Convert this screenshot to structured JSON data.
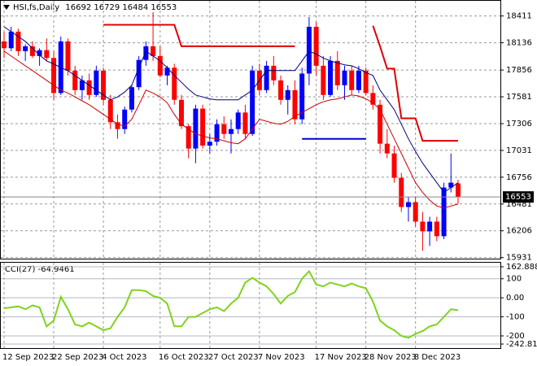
{
  "chart_data": [
    {
      "type": "candlestick",
      "title": "HSI,fs,Daily",
      "grid": true,
      "up_color": "#0000ff",
      "down_color": "#ff0000",
      "categories": [
        "12 Sep 2023",
        null,
        null,
        null,
        null,
        null,
        null,
        "22 Sep 2023",
        null,
        null,
        null,
        null,
        null,
        null,
        "4 Oct 2023",
        null,
        null,
        null,
        null,
        null,
        null,
        null,
        "16 Oct 2023",
        null,
        null,
        null,
        null,
        null,
        null,
        "27 Oct 2023",
        null,
        null,
        null,
        null,
        null,
        null,
        "7 Nov 2023",
        null,
        null,
        null,
        null,
        null,
        null,
        null,
        "17 Nov 2023",
        null,
        null,
        null,
        null,
        null,
        null,
        "28 Nov 2023",
        null,
        null,
        null,
        null,
        null,
        null,
        "8 Dec 2023",
        null,
        null,
        null,
        null,
        null,
        null
      ],
      "open": [
        18150,
        18080,
        18250,
        18050,
        18100,
        18000,
        18060,
        17980,
        17620,
        18150,
        17850,
        17650,
        17750,
        17600,
        17850,
        17550,
        17320,
        17250,
        17450,
        17680,
        17960,
        18100,
        18000,
        17800,
        17880,
        17550,
        17280,
        17050,
        17460,
        17080,
        17120,
        17300,
        17200,
        17250,
        17420,
        17200,
        17850,
        17650,
        17900,
        17750,
        17550,
        17650,
        17350,
        17820,
        18300,
        17900,
        17600,
        17950,
        17700,
        17850,
        17650,
        17850,
        17620,
        17500,
        17100,
        17000,
        16750,
        16450,
        16500,
        16300,
        16200,
        16300,
        16150,
        16650,
        16692
      ],
      "high": [
        18250,
        18300,
        18280,
        18120,
        18150,
        18080,
        18180,
        18050,
        18200,
        18180,
        17900,
        17800,
        17820,
        17900,
        17880,
        17600,
        17400,
        17480,
        17700,
        18000,
        18150,
        18450,
        18100,
        17900,
        17920,
        17600,
        17300,
        17500,
        17500,
        17200,
        17350,
        17380,
        17350,
        17450,
        17500,
        17900,
        17920,
        17950,
        18000,
        17800,
        17700,
        17750,
        17880,
        18400,
        18350,
        18000,
        18000,
        18050,
        17900,
        17900,
        17900,
        17880,
        17700,
        17550,
        17250,
        17080,
        16800,
        16550,
        16550,
        16400,
        16350,
        16350,
        16700,
        17000,
        16729
      ],
      "low": [
        17980,
        18050,
        18000,
        17950,
        17980,
        17900,
        17950,
        17550,
        17600,
        17800,
        17600,
        17550,
        17550,
        17580,
        17500,
        17250,
        17150,
        17200,
        17420,
        17650,
        17900,
        17950,
        17780,
        17700,
        17500,
        17250,
        16950,
        16900,
        17050,
        17000,
        17080,
        17150,
        17000,
        17200,
        17150,
        17180,
        17600,
        17620,
        17700,
        17500,
        17400,
        17300,
        17300,
        17700,
        17800,
        17550,
        17580,
        17650,
        17550,
        17600,
        17620,
        17600,
        17450,
        17000,
        16950,
        16700,
        16400,
        16300,
        16250,
        16000,
        16050,
        16100,
        16120,
        16600,
        16484
      ],
      "close": [
        18080,
        18250,
        18050,
        18100,
        18000,
        18060,
        17980,
        17620,
        18150,
        17850,
        17650,
        17750,
        17600,
        17850,
        17550,
        17320,
        17250,
        17450,
        17680,
        17960,
        18100,
        18000,
        17800,
        17880,
        17550,
        17280,
        17050,
        17460,
        17080,
        17120,
        17300,
        17200,
        17250,
        17420,
        17200,
        17850,
        17650,
        17900,
        17750,
        17550,
        17650,
        17350,
        17820,
        18300,
        17900,
        17600,
        17950,
        17700,
        17850,
        17650,
        17850,
        17620,
        17500,
        17100,
        17000,
        16750,
        16450,
        16500,
        16300,
        16200,
        16300,
        16150,
        16650,
        16700,
        16553
      ],
      "lines": [
        {
          "color": "#000080",
          "width": 1,
          "values": [
            18300,
            18250,
            18200,
            18150,
            18080,
            18010,
            17950,
            17920,
            17880,
            17850,
            17800,
            17750,
            17700,
            17650,
            17600,
            17550,
            17580,
            17630,
            17700,
            17880,
            18050,
            18000,
            17950,
            17880,
            17800,
            17730,
            17660,
            17600,
            17580,
            17560,
            17550,
            17550,
            17550,
            17550,
            17600,
            17650,
            17750,
            17850,
            17850,
            17850,
            17850,
            17850,
            17950,
            18050,
            18020,
            17980,
            17950,
            17930,
            17910,
            17900,
            17870,
            17830,
            17800,
            17650,
            17550,
            17450,
            17300,
            17150,
            17020,
            16900,
            16800,
            16700,
            16600,
            16650,
            16700
          ]
        },
        {
          "color": "#cc0000",
          "width": 1,
          "values": [
            18050,
            18000,
            17950,
            17900,
            17850,
            17800,
            17750,
            17700,
            17650,
            17620,
            17580,
            17540,
            17500,
            17450,
            17400,
            17350,
            17300,
            17280,
            17350,
            17500,
            17650,
            17620,
            17580,
            17520,
            17400,
            17300,
            17250,
            17200,
            17180,
            17160,
            17150,
            17130,
            17110,
            17100,
            17150,
            17250,
            17350,
            17330,
            17310,
            17300,
            17330,
            17380,
            17420,
            17460,
            17500,
            17530,
            17550,
            17560,
            17580,
            17600,
            17590,
            17560,
            17520,
            17450,
            17300,
            17150,
            17000,
            16850,
            16700,
            16600,
            16520,
            16460,
            16440,
            16460,
            16480
          ]
        },
        {
          "color": "#e00000",
          "width": 2,
          "values": [
            null,
            null,
            null,
            null,
            null,
            null,
            null,
            null,
            null,
            null,
            null,
            null,
            null,
            null,
            18320,
            18320,
            18320,
            18320,
            18320,
            18320,
            18320,
            18320,
            18320,
            18320,
            18320,
            18100,
            18100,
            18100,
            18100,
            18100,
            18100,
            18100,
            18100,
            18100,
            18100,
            18100,
            18100,
            18100,
            18100,
            18100,
            18100,
            18100,
            null,
            null,
            null,
            null,
            null,
            null,
            null,
            null,
            null,
            null,
            18310,
            18100,
            17870,
            17870,
            17360,
            17360,
            17360,
            17130,
            17130,
            17130,
            17130,
            17130,
            17130
          ]
        },
        {
          "color": "#0000dd",
          "width": 2,
          "values": [
            null,
            null,
            null,
            null,
            null,
            null,
            null,
            null,
            null,
            null,
            null,
            null,
            null,
            null,
            null,
            null,
            null,
            null,
            null,
            null,
            null,
            null,
            null,
            null,
            null,
            null,
            null,
            null,
            null,
            null,
            null,
            null,
            null,
            null,
            null,
            null,
            null,
            null,
            null,
            null,
            null,
            null,
            17150,
            17150,
            17150,
            17150,
            17150,
            17150,
            17150,
            17150,
            17150,
            17150,
            null,
            null,
            null,
            null,
            null,
            null,
            null,
            null,
            null,
            null,
            null,
            null,
            null
          ]
        }
      ],
      "ylim": [
        15920,
        18550
      ],
      "yticks": [
        18411,
        18136,
        17856,
        17581,
        17306,
        17031,
        16756,
        16481,
        16206,
        15931
      ]
    },
    {
      "type": "line",
      "title": "CCI(27)",
      "color": "#7fd41a",
      "values": [
        -55,
        -50,
        -45,
        -60,
        -40,
        -50,
        -150,
        -120,
        5,
        -60,
        -140,
        -150,
        -130,
        -150,
        -170,
        -160,
        -100,
        -50,
        40,
        40,
        35,
        10,
        0,
        -30,
        -150,
        -150,
        -100,
        -100,
        -80,
        -60,
        -50,
        -70,
        -30,
        0,
        80,
        105,
        80,
        60,
        20,
        -30,
        10,
        30,
        100,
        140,
        70,
        60,
        80,
        70,
        60,
        75,
        60,
        50,
        -20,
        -120,
        -150,
        -170,
        -200,
        -210,
        -190,
        -175,
        -150,
        -140,
        -100,
        -60,
        -64.9461
      ],
      "ylim": [
        -242.81,
        162.8881
      ],
      "yticks": [
        162.8881,
        100,
        {
          "value": 0,
          "label": "0.00"
        },
        -100,
        -200,
        -242.81
      ]
    }
  ]
}
